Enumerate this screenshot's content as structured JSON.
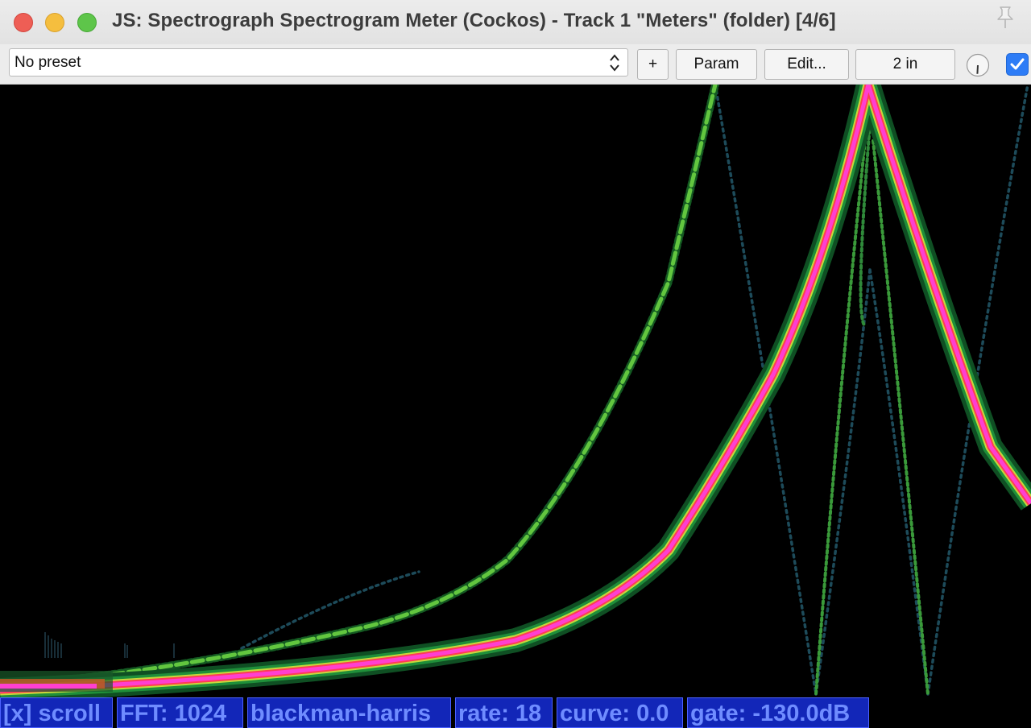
{
  "window": {
    "title": "JS: Spectrograph Spectrogram Meter (Cockos) - Track 1 \"Meters\" (folder) [4/6]"
  },
  "toolbar": {
    "preset_value": "No preset",
    "add_label": "+",
    "param_label": "Param",
    "edit_label": "Edit...",
    "io_label": "2 in",
    "enabled": true
  },
  "status": {
    "scroll": "[x] scroll",
    "fft": "FFT: 1024",
    "window": "blackman-harris",
    "rate": "rate: 18",
    "curve": "curve: 0.0",
    "gate": "gate: -130.0dB"
  },
  "colors": {
    "status_bg": "#1226b8",
    "status_text": "#6f8cff",
    "trace_core": "#ff3fd1",
    "trace_mid": "#ffe23c",
    "trace_outer": "#1f8f3a",
    "harmonic": "#62c63f",
    "alias": "#1d4b5a",
    "checkbox": "#2d7cf6"
  }
}
